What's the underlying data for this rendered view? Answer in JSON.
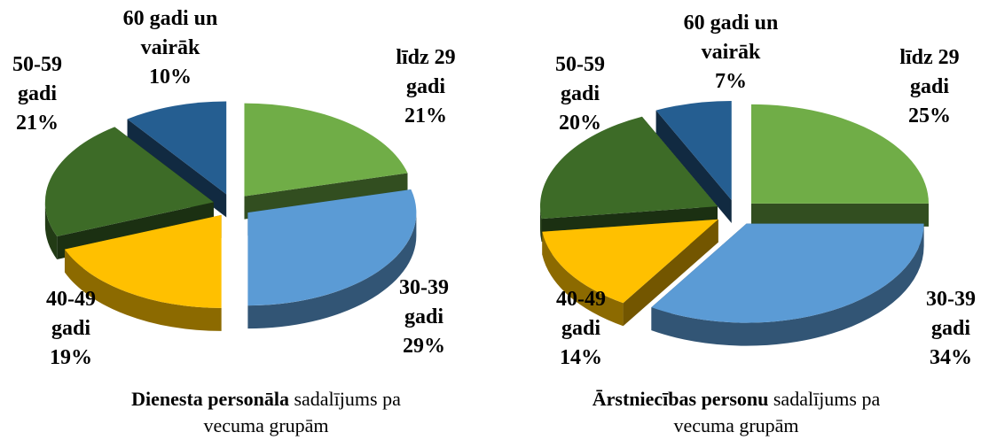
{
  "chart_data": [
    {
      "type": "pie3d",
      "title": [
        "Dienesta personāla",
        "sadalījums pa",
        "vecuma grupām"
      ],
      "categories": [
        [
          "līdz 29",
          "gadi"
        ],
        [
          "30-39",
          "gadi"
        ],
        [
          "40-49",
          "gadi"
        ],
        [
          "50-59",
          "gadi"
        ],
        [
          "60 gadi un",
          "vairāk"
        ]
      ],
      "values": [
        21,
        29,
        19,
        21,
        10
      ],
      "value_labels": [
        "21%",
        "29%",
        "19%",
        "21%",
        "10%"
      ],
      "colors": [
        "#70ad47",
        "#5b9bd5",
        "#ffc000",
        "#3d6b27",
        "#255e91"
      ]
    },
    {
      "type": "pie3d",
      "title": [
        "Ārstniecības personu",
        "sadalījums pa",
        "vecuma grupām"
      ],
      "categories": [
        [
          "līdz 29",
          "gadi"
        ],
        [
          "30-39",
          "gadi"
        ],
        [
          "40-49",
          "gadi"
        ],
        [
          "50-59",
          "gadi"
        ],
        [
          "60 gadi un",
          "vairāk"
        ]
      ],
      "values": [
        25,
        34,
        14,
        20,
        7
      ],
      "value_labels": [
        "25%",
        "34%",
        "14%",
        "20%",
        "7%"
      ],
      "colors": [
        "#70ad47",
        "#5b9bd5",
        "#ffc000",
        "#3d6b27",
        "#255e91"
      ]
    }
  ]
}
